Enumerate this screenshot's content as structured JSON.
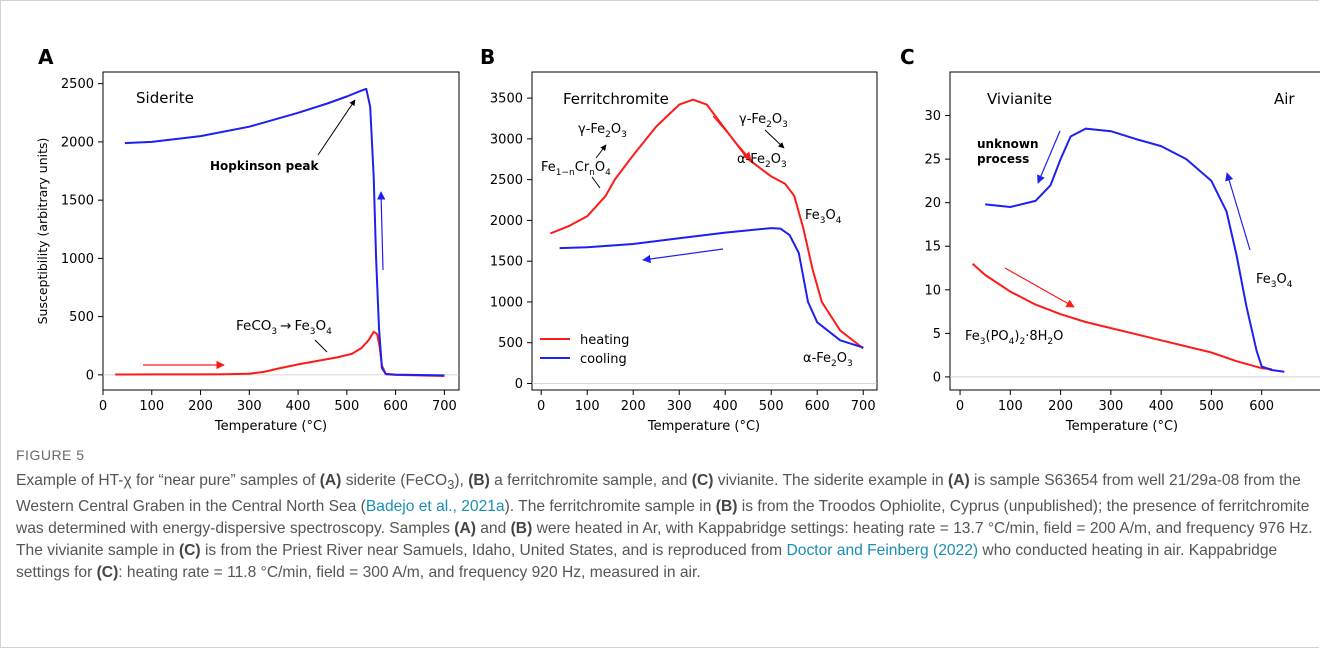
{
  "figure": {
    "label": "FIGURE 5",
    "caption": [
      {
        "t": "Example of HT-χ for “near pure” samples of "
      },
      {
        "t": "(A)",
        "b": true
      },
      {
        "t": " siderite (FeCO"
      },
      {
        "t": "3",
        "sub": true
      },
      {
        "t": "), "
      },
      {
        "t": "(B)",
        "b": true
      },
      {
        "t": " a ferritchromite sample, and "
      },
      {
        "t": "(C)",
        "b": true
      },
      {
        "t": " vivianite. The siderite example in "
      },
      {
        "t": "(A)",
        "b": true
      },
      {
        "t": " is sample S63654 from well 21/29a-08 from the Western Central Graben in the Central North Sea ("
      },
      {
        "t": "Badejo et al., 2021a",
        "link": true
      },
      {
        "t": "). The ferritchromite sample in "
      },
      {
        "t": "(B)",
        "b": true
      },
      {
        "t": " is from the Troodos Ophiolite, Cyprus (unpublished); the presence of ferritchromite was determined with energy-dispersive spectroscopy. Samples "
      },
      {
        "t": "(A)",
        "b": true
      },
      {
        "t": " and "
      },
      {
        "t": "(B)",
        "b": true
      },
      {
        "t": " were heated in Ar, with Kappabridge settings: heating rate = 13.7 °C/min, field = 200 A/m, and frequency 976 Hz. The vivianite sample in "
      },
      {
        "t": "(C)",
        "b": true
      },
      {
        "t": " is from the Priest River near Samuels, Idaho, United States, and is reproduced from "
      },
      {
        "t": "Doctor and Feinberg (2022)",
        "link": true
      },
      {
        "t": " who conducted heating in air. Kappabridge settings for "
      },
      {
        "t": "(C)",
        "b": true
      },
      {
        "t": ": heating rate = 11.8 °C/min, field = 300 A/m, and frequency 920 Hz, measured in air."
      }
    ]
  },
  "chart_data": [
    {
      "type": "line",
      "panel": "A",
      "title": "Siderite",
      "xlabel": "Temperature (°C)",
      "ylabel": "Susceptibility (arbitrary units)",
      "xlim": [
        0,
        730
      ],
      "ylim": [
        -130,
        2600
      ],
      "xticks": [
        0,
        100,
        200,
        300,
        400,
        500,
        600,
        700
      ],
      "yticks": [
        0,
        500,
        1000,
        1500,
        2000,
        2500
      ],
      "series": [
        {
          "color": "#ff1a1a",
          "x": [
            25,
            100,
            200,
            250,
            300,
            330,
            360,
            400,
            440,
            480,
            510,
            530,
            545,
            555,
            562,
            567,
            572,
            580,
            600,
            700
          ],
          "y": [
            3,
            4,
            4,
            5,
            10,
            25,
            55,
            90,
            120,
            150,
            180,
            230,
            300,
            370,
            350,
            250,
            80,
            5,
            0,
            -10
          ]
        },
        {
          "color": "#1f1ff0",
          "x": [
            45,
            100,
            200,
            300,
            400,
            460,
            500,
            530,
            540,
            548,
            555,
            560,
            566,
            572,
            580,
            600,
            700
          ],
          "y": [
            1990,
            2000,
            2050,
            2130,
            2250,
            2330,
            2390,
            2440,
            2455,
            2300,
            1700,
            1000,
            400,
            60,
            8,
            2,
            -5
          ]
        }
      ],
      "annotations": [
        {
          "text": "Hopkinson peak"
        },
        {
          "text": "FeCO",
          "sub1": "3",
          "arrow": "→",
          "text2": "Fe",
          "sub2": "3",
          "text3": "O",
          "sub3": "4"
        }
      ]
    },
    {
      "type": "line",
      "panel": "B",
      "title": "Ferritchromite",
      "xlabel": "Temperature (°C)",
      "xlim": [
        -20,
        730
      ],
      "ylim": [
        -80,
        3820
      ],
      "xticks": [
        0,
        100,
        200,
        300,
        400,
        500,
        600,
        700
      ],
      "yticks": [
        0,
        500,
        1000,
        1500,
        2000,
        2500,
        3000,
        3500
      ],
      "series": [
        {
          "name": "heating",
          "color": "#ff1a1a",
          "x": [
            20,
            60,
            100,
            140,
            160,
            200,
            250,
            300,
            330,
            360,
            400,
            450,
            500,
            530,
            550,
            570,
            590,
            610,
            650,
            700
          ],
          "y": [
            1840,
            1930,
            2050,
            2300,
            2500,
            2800,
            3150,
            3420,
            3480,
            3420,
            3120,
            2750,
            2540,
            2450,
            2300,
            1900,
            1400,
            1000,
            650,
            430
          ]
        },
        {
          "name": "cooling",
          "color": "#1f1ff0",
          "x": [
            40,
            100,
            200,
            300,
            400,
            500,
            520,
            540,
            560,
            570,
            580,
            600,
            650,
            700
          ],
          "y": [
            1660,
            1670,
            1710,
            1780,
            1850,
            1905,
            1900,
            1820,
            1600,
            1300,
            1000,
            750,
            530,
            440
          ]
        }
      ],
      "legend": [
        "heating",
        "cooling"
      ]
    },
    {
      "type": "line",
      "panel": "C",
      "title": "Vivianite",
      "corner_label": "Air",
      "xlabel": "Temperature (°C)",
      "xlim": [
        -20,
        720
      ],
      "ylim": [
        -1.5,
        35
      ],
      "xticks": [
        0,
        100,
        200,
        300,
        400,
        500,
        600
      ],
      "yticks": [
        0,
        5,
        10,
        15,
        20,
        25,
        30
      ],
      "series": [
        {
          "color": "#ff1a1a",
          "x": [
            25,
            50,
            100,
            150,
            200,
            250,
            300,
            350,
            400,
            450,
            500,
            550,
            600,
            620
          ],
          "y": [
            13,
            11.7,
            9.8,
            8.3,
            7.2,
            6.3,
            5.6,
            4.9,
            4.2,
            3.5,
            2.8,
            1.8,
            1.0,
            0.9
          ]
        },
        {
          "color": "#1f1ff0",
          "x": [
            50,
            100,
            150,
            180,
            200,
            220,
            250,
            300,
            350,
            400,
            450,
            500,
            530,
            550,
            570,
            590,
            600,
            620,
            645
          ],
          "y": [
            19.8,
            19.5,
            20.2,
            22.0,
            25.0,
            27.6,
            28.5,
            28.2,
            27.3,
            26.5,
            25.0,
            22.5,
            19.0,
            14.0,
            8.0,
            3.0,
            1.2,
            0.8,
            0.6
          ]
        }
      ],
      "annotations": [
        {
          "text": "unknown process"
        },
        {
          "text": "Fe",
          "sub1": "3",
          "text2": "O",
          "sub2": "4"
        }
      ]
    }
  ]
}
